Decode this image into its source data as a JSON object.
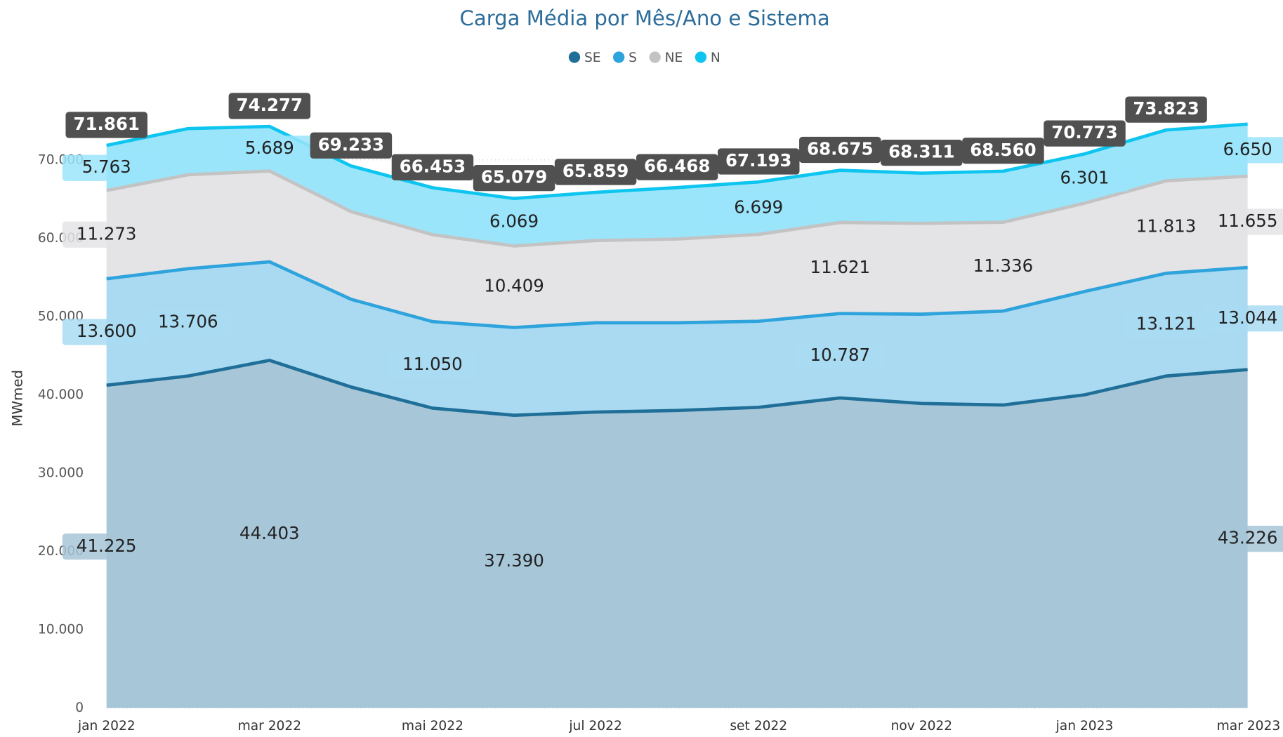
{
  "chart_data": {
    "type": "stacked-area",
    "title": "Carga Média por Mês/Ano e Sistema",
    "y_label": "MWmed",
    "categories": [
      "jan 2022",
      null,
      "mar 2022",
      null,
      "mai 2022",
      null,
      "jul 2022",
      null,
      "set 2022",
      null,
      "nov 2022",
      null,
      "jan 2023",
      null,
      "mar 2023"
    ],
    "ylim": [
      0,
      78000
    ],
    "yticks": [
      0,
      {
        "value": 10000,
        "label": "10.000"
      },
      {
        "value": 20000,
        "label": "20.000"
      },
      {
        "value": 30000,
        "label": "30.000"
      },
      {
        "value": 40000,
        "label": "40.000"
      },
      {
        "value": 50000,
        "label": "50.000"
      },
      {
        "value": 60000,
        "label": "60.000"
      },
      {
        "value": 70000,
        "label": "70.000"
      }
    ],
    "grid": true,
    "series": [
      {
        "name": "SE",
        "color": "#1f6f98",
        "fill": "#a7c6d8",
        "values": [
          41225,
          42400,
          44403,
          41000,
          38300,
          37390,
          37800,
          38000,
          38400,
          39600,
          38900,
          38700,
          40000,
          42400,
          43226
        ],
        "value_labels": [
          "41.225",
          null,
          "44.403",
          null,
          null,
          "37.390",
          null,
          null,
          null,
          null,
          null,
          null,
          null,
          null,
          "43.226"
        ]
      },
      {
        "name": "S",
        "color": "#2ea3dc",
        "fill": "#a9daf2",
        "values": [
          13600,
          13706,
          12585,
          11200,
          11050,
          11211,
          11400,
          11200,
          11000,
          10787,
          11400,
          12000,
          13200,
          13121,
          13044
        ],
        "value_labels": [
          "13.600",
          "13.706",
          null,
          null,
          "11.050",
          null,
          null,
          null,
          null,
          "10.787",
          null,
          null,
          null,
          "13.121",
          "13.044"
        ]
      },
      {
        "name": "NE",
        "color": "#c3c3c3",
        "fill": "#e4e4e6",
        "values": [
          11273,
          12000,
          11600,
          11200,
          11100,
          10409,
          10500,
          10700,
          11094,
          11621,
          11600,
          11336,
          11272,
          11813,
          11655
        ],
        "value_labels": [
          "11.273",
          null,
          null,
          null,
          null,
          "10.409",
          null,
          null,
          null,
          "11.621",
          null,
          "11.336",
          null,
          "11.813",
          "11.655"
        ]
      },
      {
        "name": "N",
        "color": "#0ec5f0",
        "fill": "#9ae5fa",
        "values": [
          5763,
          5900,
          5689,
          5833,
          6003,
          6069,
          6159,
          6568,
          6699,
          6667,
          6411,
          6524,
          6301,
          6489,
          6650
        ],
        "value_labels": [
          "5.763",
          null,
          "5.689",
          null,
          null,
          "6.069",
          null,
          null,
          "6.699",
          null,
          null,
          null,
          "6.301",
          null,
          "6.650"
        ]
      }
    ],
    "totals": {
      "values": [
        71861,
        null,
        74277,
        69233,
        66453,
        65079,
        65859,
        66468,
        67193,
        68675,
        68311,
        68560,
        70773,
        73823,
        null
      ],
      "value_labels": [
        "71.861",
        null,
        "74.277",
        "69.233",
        "66.453",
        "65.079",
        "65.859",
        "66.468",
        "67.193",
        "68.675",
        "68.311",
        "68.560",
        "70.773",
        "73.823",
        null
      ]
    }
  }
}
